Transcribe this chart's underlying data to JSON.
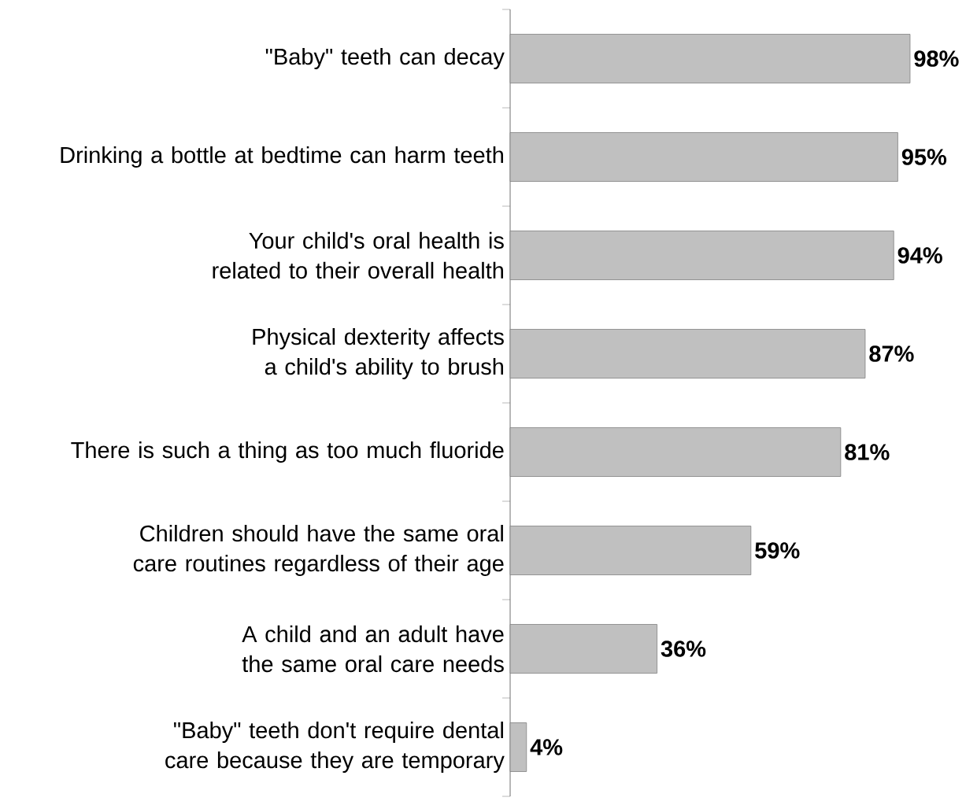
{
  "chart_data": {
    "type": "bar",
    "orientation": "horizontal",
    "categories": [
      "\"Baby\" teeth can decay",
      "Drinking a bottle at bedtime can harm teeth",
      "Your child's oral health is related to their overall health",
      "Physical dexterity affects a child's ability to brush",
      "There is such a thing as too much fluoride",
      "Children should have the same oral care routines regardless of their age",
      "A child and an adult have the same oral care needs",
      "\"Baby\" teeth don't require dental care because they are temporary"
    ],
    "values": [
      98,
      95,
      94,
      87,
      81,
      59,
      36,
      4
    ],
    "value_labels": [
      "98%",
      "95%",
      "94%",
      "87%",
      "81%",
      "59%",
      "36%",
      "4%"
    ],
    "color": "#c0c0c0"
  }
}
